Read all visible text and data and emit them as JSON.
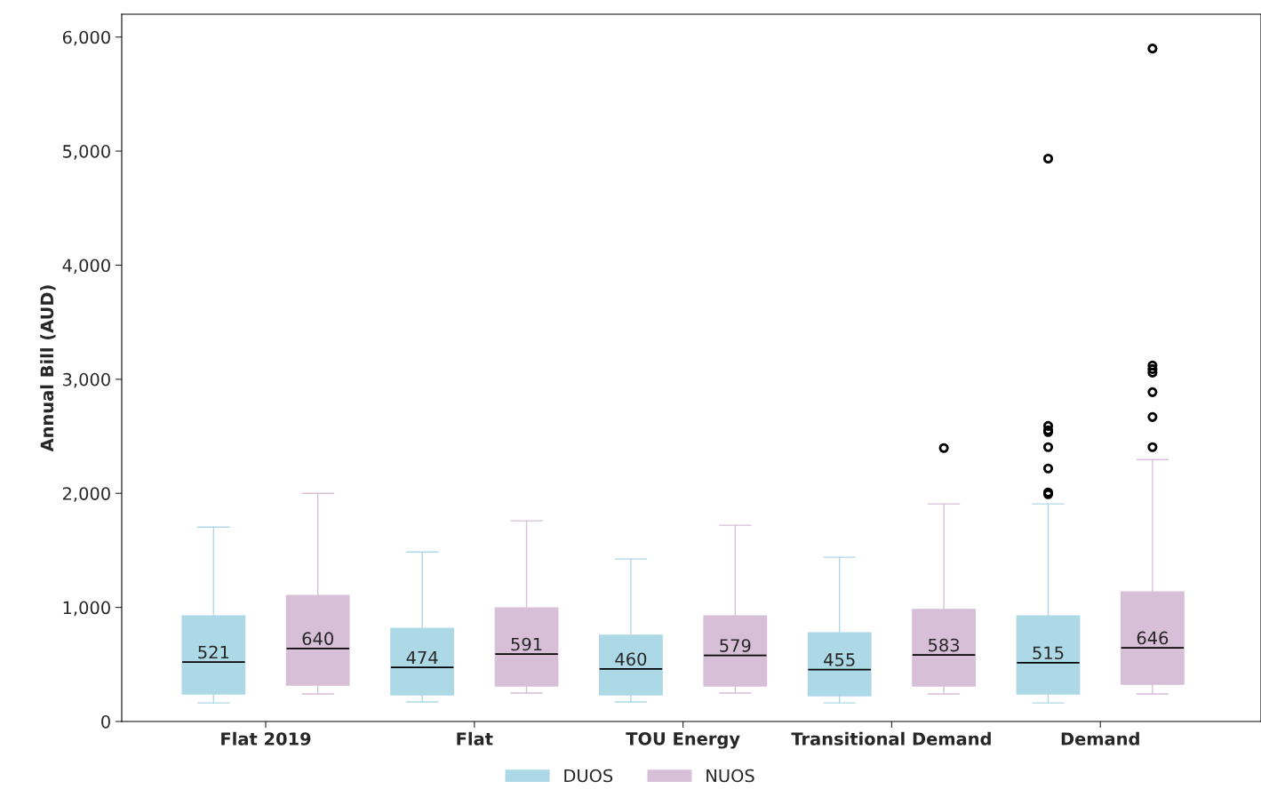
{
  "chart_data": {
    "type": "box",
    "ylabel": "Annual Bill (AUD)",
    "categories": [
      "Flat 2019",
      "Flat",
      "TOU Energy",
      "Transitional Demand",
      "Demand"
    ],
    "series": [
      {
        "name": "DUOS",
        "color": "#add8e6",
        "value_labels": [
          "521",
          "474",
          "460",
          "455",
          "515"
        ],
        "boxes": [
          {
            "low": 163,
            "q1": 241,
            "median": 521,
            "q3": 926,
            "high": 1704
          },
          {
            "low": 171,
            "q1": 233,
            "median": 474,
            "q3": 817,
            "high": 1486
          },
          {
            "low": 171,
            "q1": 233,
            "median": 460,
            "q3": 755,
            "high": 1424
          },
          {
            "low": 163,
            "q1": 226,
            "median": 455,
            "q3": 778,
            "high": 1440
          },
          {
            "low": 163,
            "q1": 241,
            "median": 515,
            "q3": 926,
            "high": 1907,
            "outliers": [
              4934,
              2591,
              2553,
              2537,
              2405,
              2218,
              2008,
              1992
            ]
          }
        ]
      },
      {
        "name": "NUOS",
        "color": "#d8bfd8",
        "value_labels": [
          "640",
          "591",
          "579",
          "583",
          "646"
        ],
        "boxes": [
          {
            "low": 241,
            "q1": 319,
            "median": 640,
            "q3": 1105,
            "high": 2000
          },
          {
            "low": 249,
            "q1": 311,
            "median": 591,
            "q3": 996,
            "high": 1759
          },
          {
            "low": 249,
            "q1": 311,
            "median": 579,
            "q3": 926,
            "high": 1720
          },
          {
            "low": 241,
            "q1": 311,
            "median": 583,
            "q3": 981,
            "high": 1907,
            "outliers": [
              2397
            ]
          },
          {
            "low": 241,
            "q1": 327,
            "median": 646,
            "q3": 1136,
            "high": 2296,
            "outliers": [
              5899,
              3121,
              3089,
              3058,
              2887,
              2669,
              2405
            ]
          }
        ]
      }
    ],
    "ylim": [
      0,
      6200
    ],
    "yticks": [
      {
        "value": 0,
        "label": "0"
      },
      {
        "value": 1000,
        "label": "1,000"
      },
      {
        "value": 2000,
        "label": "2,000"
      },
      {
        "value": 3000,
        "label": "3,000"
      },
      {
        "value": 4000,
        "label": "4,000"
      },
      {
        "value": 5000,
        "label": "5,000"
      },
      {
        "value": 6000,
        "label": "6,000"
      }
    ],
    "legend": "bottom",
    "grid": false
  }
}
